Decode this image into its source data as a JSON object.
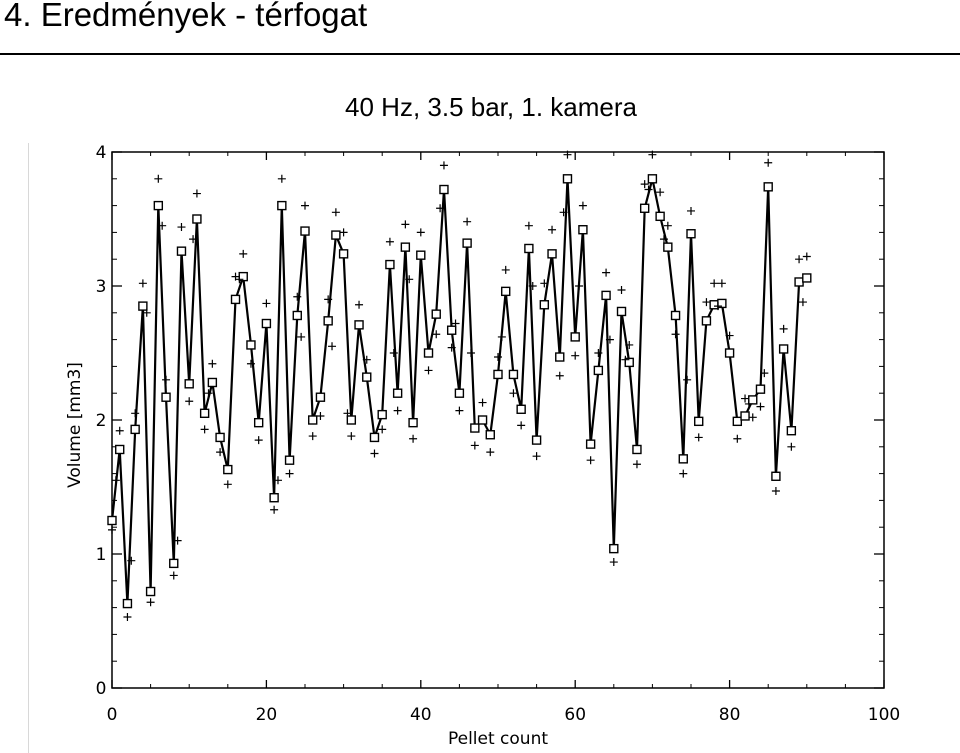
{
  "header": {
    "title": "4. Eredmények - térfogat",
    "chart_title": "40 Hz, 3.5 bar, 1. kamera"
  },
  "chart_data": {
    "type": "line",
    "title": "40 Hz, 3.5 bar, 1. kamera",
    "xlabel": "Pellet count",
    "ylabel": "Volume [mm3]",
    "xlim": [
      0,
      100
    ],
    "ylim": [
      0,
      4
    ],
    "xticks": [
      0,
      20,
      40,
      60,
      80,
      100
    ],
    "yticks": [
      0,
      1,
      2,
      3,
      4
    ],
    "grid": false,
    "series": [
      {
        "marker": "square",
        "x": [
          0,
          1,
          2,
          3,
          4,
          5,
          6,
          7,
          8,
          9,
          10,
          11,
          12,
          13,
          14,
          15,
          16,
          17,
          18,
          19,
          20,
          21,
          22,
          23,
          24,
          25,
          26,
          27,
          28,
          29,
          30,
          31,
          32,
          33,
          34,
          35,
          36,
          37,
          38,
          39,
          40,
          41,
          42,
          43,
          44,
          45,
          46,
          47,
          48,
          49,
          50,
          51,
          52,
          53,
          54,
          55,
          56,
          57,
          58,
          59,
          60,
          61,
          62,
          63,
          64,
          65,
          66,
          67,
          68,
          69,
          70,
          71,
          72,
          73,
          74,
          75,
          76,
          77,
          78,
          79,
          80,
          81,
          82,
          83,
          84,
          85,
          86,
          87,
          88,
          89,
          90
        ],
        "values": [
          1.25,
          1.78,
          0.63,
          1.93,
          2.85,
          0.72,
          3.6,
          2.17,
          0.93,
          3.26,
          2.27,
          3.5,
          2.05,
          2.28,
          1.87,
          1.63,
          2.9,
          3.07,
          2.56,
          1.98,
          2.72,
          1.42,
          3.6,
          1.7,
          2.78,
          3.41,
          2.0,
          2.17,
          2.74,
          3.38,
          3.24,
          2.0,
          2.71,
          2.32,
          1.87,
          2.04,
          3.16,
          2.2,
          3.29,
          1.98,
          3.23,
          2.5,
          2.79,
          3.72,
          2.67,
          2.2,
          3.32,
          1.94,
          2.0,
          1.89,
          2.34,
          2.96,
          2.34,
          2.08,
          3.28,
          1.85,
          2.86,
          3.24,
          2.47,
          3.8,
          2.62,
          3.42,
          1.82,
          2.37,
          2.93,
          1.04,
          2.81,
          2.43,
          1.78,
          3.58,
          3.8,
          3.52,
          3.29,
          2.78,
          1.71,
          3.39,
          1.99,
          2.74,
          2.86,
          2.87,
          2.5,
          1.99,
          2.03,
          2.15,
          2.23,
          3.74,
          1.58,
          2.53,
          1.92,
          3.03,
          3.06
        ]
      }
    ],
    "scatter_series": [
      {
        "marker": "plus",
        "x": [
          0,
          1,
          2,
          3,
          4,
          5,
          6,
          7,
          8,
          9,
          10,
          11,
          12,
          13,
          14,
          15,
          16,
          17,
          18,
          19,
          20,
          21,
          22,
          23,
          24,
          25,
          26,
          27,
          28,
          29,
          30,
          31,
          32,
          33,
          34,
          35,
          36,
          37,
          38,
          39,
          40,
          41,
          42,
          43,
          44,
          45,
          46,
          47,
          48,
          49,
          50,
          51,
          52,
          53,
          54,
          55,
          56,
          57,
          58,
          59,
          60,
          61,
          62,
          63,
          64,
          65,
          66,
          67,
          68,
          69,
          70,
          71,
          72,
          73,
          74,
          75,
          76,
          77,
          78,
          79,
          80,
          81,
          82,
          83,
          84,
          85,
          86,
          87,
          88,
          89,
          90,
          0.5,
          2.5,
          4.5,
          6.5,
          8.5,
          10.5,
          12.5,
          16.5,
          21.5,
          24.5,
          28.5,
          30.5,
          36.5,
          38.5,
          42.5,
          44.5,
          46.5,
          50.5,
          54.5,
          58.5,
          60.5,
          64.5,
          66.5,
          69.5,
          71.5,
          74.5,
          78.5,
          82.5,
          84.5,
          89.5
        ],
        "values": [
          1.18,
          1.92,
          0.53,
          2.05,
          3.02,
          0.64,
          3.8,
          2.3,
          0.84,
          3.44,
          2.14,
          3.69,
          1.93,
          2.42,
          1.76,
          1.52,
          3.07,
          3.24,
          2.42,
          1.85,
          2.87,
          1.33,
          3.8,
          1.6,
          2.92,
          3.6,
          1.88,
          2.03,
          2.9,
          3.55,
          3.4,
          1.88,
          2.86,
          2.45,
          1.75,
          1.93,
          3.33,
          2.07,
          3.46,
          1.86,
          3.4,
          2.37,
          2.64,
          3.9,
          2.54,
          2.07,
          3.48,
          1.81,
          2.13,
          1.76,
          2.47,
          3.12,
          2.2,
          1.96,
          3.45,
          1.73,
          3.02,
          3.42,
          2.33,
          3.98,
          2.48,
          3.6,
          1.7,
          2.5,
          3.1,
          0.94,
          2.97,
          2.56,
          1.67,
          3.76,
          3.98,
          3.7,
          3.45,
          2.64,
          1.6,
          3.56,
          1.87,
          2.88,
          3.02,
          3.02,
          2.63,
          1.86,
          2.16,
          2.02,
          2.1,
          3.92,
          1.47,
          2.68,
          1.8,
          3.2,
          3.22,
          1.55,
          0.95,
          2.8,
          3.45,
          1.1,
          3.35,
          2.2,
          3.05,
          1.55,
          2.62,
          2.55,
          2.05,
          2.5,
          3.05,
          3.58,
          2.72,
          2.5,
          2.62,
          3.0,
          3.55,
          3.0,
          2.6,
          2.45,
          3.72,
          3.35,
          2.3,
          2.85,
          2.12,
          2.35,
          2.88
        ]
      }
    ]
  }
}
